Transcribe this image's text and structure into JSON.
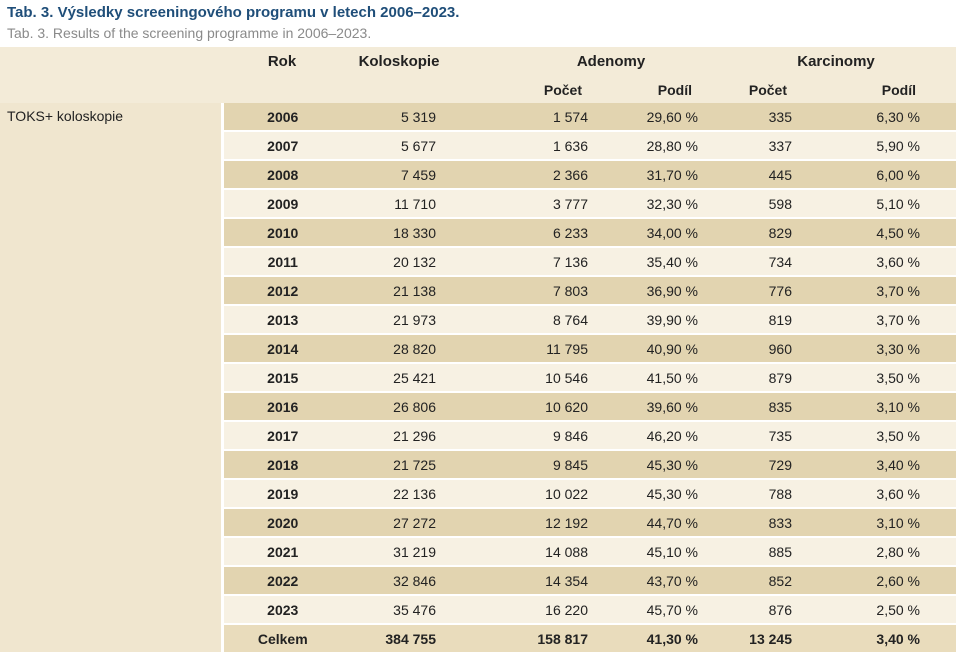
{
  "title_cz": "Tab. 3. Výsledky screeningového programu v letech 2006–2023.",
  "title_en": "Tab. 3. Results of the screening programme in 2006–2023.",
  "headers": {
    "rok": "Rok",
    "koloskopie": "Koloskopie",
    "adenomy": "Adenomy",
    "karcinomy": "Karcinomy",
    "pocet": "Počet",
    "podil": "Podíl"
  },
  "row_label": "TOKS+ koloskopie",
  "rows": [
    {
      "rok": "2006",
      "koloskopie": "5 319",
      "aden_pocet": "1 574",
      "aden_podil": "29,60 %",
      "karc_pocet": "335",
      "karc_podil": "6,30 %"
    },
    {
      "rok": "2007",
      "koloskopie": "5 677",
      "aden_pocet": "1 636",
      "aden_podil": "28,80 %",
      "karc_pocet": "337",
      "karc_podil": "5,90 %"
    },
    {
      "rok": "2008",
      "koloskopie": "7 459",
      "aden_pocet": "2 366",
      "aden_podil": "31,70 %",
      "karc_pocet": "445",
      "karc_podil": "6,00 %"
    },
    {
      "rok": "2009",
      "koloskopie": "11 710",
      "aden_pocet": "3 777",
      "aden_podil": "32,30 %",
      "karc_pocet": "598",
      "karc_podil": "5,10 %"
    },
    {
      "rok": "2010",
      "koloskopie": "18 330",
      "aden_pocet": "6 233",
      "aden_podil": "34,00 %",
      "karc_pocet": "829",
      "karc_podil": "4,50 %"
    },
    {
      "rok": "2011",
      "koloskopie": "20 132",
      "aden_pocet": "7 136",
      "aden_podil": "35,40 %",
      "karc_pocet": "734",
      "karc_podil": "3,60 %"
    },
    {
      "rok": "2012",
      "koloskopie": "21 138",
      "aden_pocet": "7 803",
      "aden_podil": "36,90 %",
      "karc_pocet": "776",
      "karc_podil": "3,70 %"
    },
    {
      "rok": "2013",
      "koloskopie": "21 973",
      "aden_pocet": "8 764",
      "aden_podil": "39,90 %",
      "karc_pocet": "819",
      "karc_podil": "3,70 %"
    },
    {
      "rok": "2014",
      "koloskopie": "28 820",
      "aden_pocet": "11 795",
      "aden_podil": "40,90 %",
      "karc_pocet": "960",
      "karc_podil": "3,30 %"
    },
    {
      "rok": "2015",
      "koloskopie": "25 421",
      "aden_pocet": "10 546",
      "aden_podil": "41,50 %",
      "karc_pocet": "879",
      "karc_podil": "3,50 %"
    },
    {
      "rok": "2016",
      "koloskopie": "26 806",
      "aden_pocet": "10 620",
      "aden_podil": "39,60 %",
      "karc_pocet": "835",
      "karc_podil": "3,10 %"
    },
    {
      "rok": "2017",
      "koloskopie": "21 296",
      "aden_pocet": "9 846",
      "aden_podil": "46,20 %",
      "karc_pocet": "735",
      "karc_podil": "3,50 %"
    },
    {
      "rok": "2018",
      "koloskopie": "21 725",
      "aden_pocet": "9 845",
      "aden_podil": "45,30 %",
      "karc_pocet": "729",
      "karc_podil": "3,40 %"
    },
    {
      "rok": "2019",
      "koloskopie": "22 136",
      "aden_pocet": "10 022",
      "aden_podil": "45,30 %",
      "karc_pocet": "788",
      "karc_podil": "3,60 %"
    },
    {
      "rok": "2020",
      "koloskopie": "27 272",
      "aden_pocet": "12 192",
      "aden_podil": "44,70 %",
      "karc_pocet": "833",
      "karc_podil": "3,10 %"
    },
    {
      "rok": "2021",
      "koloskopie": "31 219",
      "aden_pocet": "14 088",
      "aden_podil": "45,10 %",
      "karc_pocet": "885",
      "karc_podil": "2,80 %"
    },
    {
      "rok": "2022",
      "koloskopie": "32 846",
      "aden_pocet": "14 354",
      "aden_podil": "43,70 %",
      "karc_pocet": "852",
      "karc_podil": "2,60 %"
    },
    {
      "rok": "2023",
      "koloskopie": "35 476",
      "aden_pocet": "16 220",
      "aden_podil": "45,70 %",
      "karc_pocet": "876",
      "karc_podil": "2,50 %"
    }
  ],
  "total": {
    "label": "Celkem",
    "koloskopie": "384 755",
    "aden_pocet": "158 817",
    "aden_podil": "41,30 %",
    "karc_pocet": "13 245",
    "karc_podil": "3,40 %"
  },
  "colors": {
    "title": "#1f4e79",
    "row_dark": "#e2d4b0",
    "row_light": "#f7f1e3",
    "header_bg": "#f3ebd8"
  }
}
